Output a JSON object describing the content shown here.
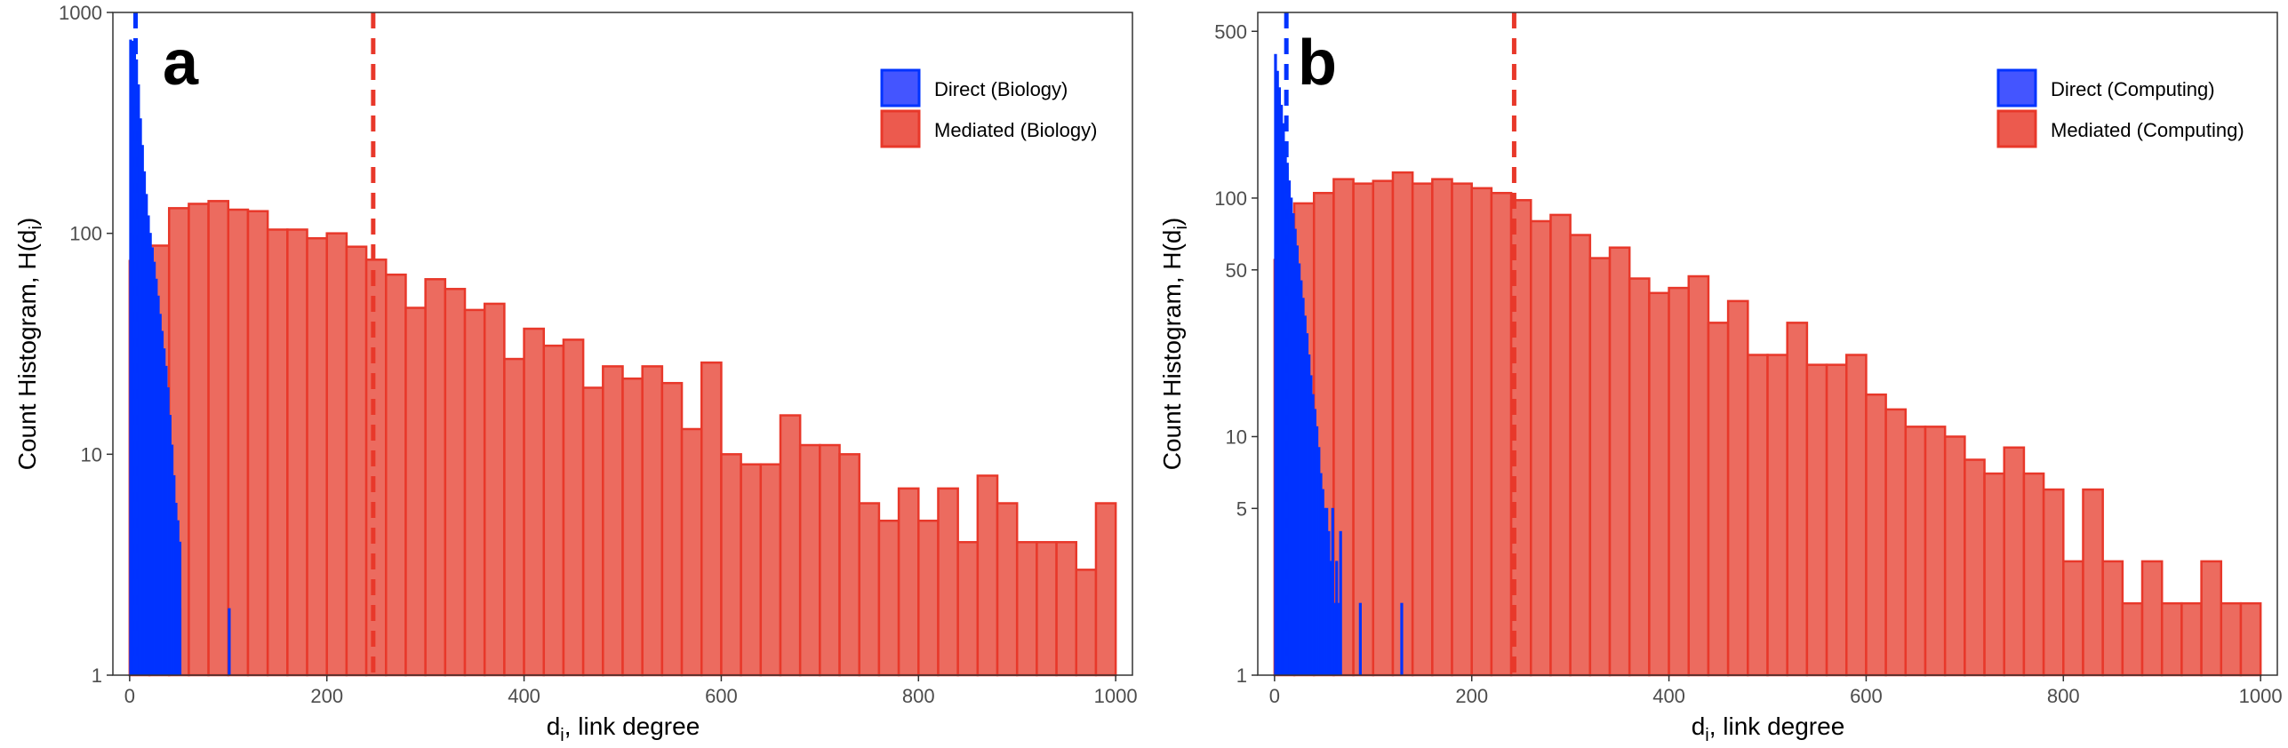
{
  "chart_data": [
    {
      "type": "histogram",
      "panel_label": "a",
      "xlabel": "d",
      "xlabel_sub": "i",
      "xlabel_rest": ", link degree",
      "ylabel": "Count Histogram, H(d",
      "ylabel_sub": "i",
      "ylabel_rest": ")",
      "x_scale": "linear",
      "y_scale": "log",
      "xlim": [
        -17,
        1017
      ],
      "ylim": [
        1,
        1000
      ],
      "x_ticks": [
        "0",
        "200",
        "400",
        "600",
        "800",
        "1000"
      ],
      "y_ticks": [
        "1",
        "10",
        "100",
        "1000"
      ],
      "grid": false,
      "legend_position": "top-right",
      "colors": {
        "direct": "#0033FF",
        "mediated": "#E8382A"
      },
      "series": [
        {
          "name": "Direct (Biology)",
          "bin_start": 0,
          "bin_width": 2,
          "values": [
            750,
            740,
            700,
            610,
            470,
            330,
            250,
            190,
            150,
            120,
            100,
            86,
            74,
            62,
            52,
            43,
            36,
            30,
            25,
            20,
            15,
            11,
            8,
            6,
            5,
            4
          ],
          "extra_bars": [
            {
              "x": 50,
              "value": 2
            },
            {
              "x": 100,
              "value": 2
            }
          ],
          "mean_line": 6
        },
        {
          "name": "Mediated (Biology)",
          "bin_start": 0,
          "bin_width": 20,
          "values": [
            75,
            88,
            130,
            136,
            140,
            128,
            126,
            104,
            104,
            95,
            100,
            87,
            76,
            65,
            46,
            62,
            56,
            45,
            48,
            27,
            37,
            31,
            33,
            20,
            25,
            22,
            25,
            21,
            13,
            26,
            10,
            9,
            9,
            15,
            11,
            11,
            10,
            6,
            5,
            7,
            5,
            7,
            4,
            8,
            6,
            4,
            4,
            4,
            3,
            6
          ],
          "mean_line": 247
        }
      ]
    },
    {
      "type": "histogram",
      "panel_label": "b",
      "xlabel": "d",
      "xlabel_sub": "i",
      "xlabel_rest": ", link degree",
      "ylabel": "Count Histogram, H(d",
      "ylabel_sub": "i",
      "ylabel_rest": ")",
      "x_scale": "linear",
      "y_scale": "log",
      "xlim": [
        -17,
        1017
      ],
      "ylim": [
        1,
        600
      ],
      "x_ticks": [
        "0",
        "200",
        "400",
        "600",
        "800",
        "1000"
      ],
      "y_ticks": [
        "1",
        "5",
        "10",
        "50",
        "100",
        "500"
      ],
      "grid": false,
      "legend_position": "top-right",
      "colors": {
        "direct": "#0033FF",
        "mediated": "#E8382A"
      },
      "series": [
        {
          "name": "Direct (Computing)",
          "bin_start": 0,
          "bin_width": 2,
          "values": [
            400,
            340,
            290,
            245,
            205,
            170,
            140,
            118,
            100,
            86,
            74,
            63,
            53,
            45,
            38,
            32,
            27,
            22,
            18,
            15,
            13,
            11,
            9,
            7,
            6,
            5,
            5,
            4,
            3,
            3,
            2,
            3,
            2
          ],
          "extra_bars": [
            {
              "x": 58,
              "value": 5
            },
            {
              "x": 66,
              "value": 4
            },
            {
              "x": 86,
              "value": 2
            },
            {
              "x": 128,
              "value": 2
            }
          ],
          "mean_line": 12
        },
        {
          "name": "Mediated (Computing)",
          "bin_start": 0,
          "bin_width": 20,
          "values": [
            55,
            95,
            105,
            120,
            115,
            118,
            128,
            115,
            120,
            115,
            110,
            105,
            98,
            80,
            85,
            70,
            56,
            62,
            46,
            40,
            42,
            47,
            30,
            37,
            22,
            22,
            30,
            20,
            20,
            22,
            15,
            13,
            11,
            11,
            10,
            8,
            7,
            9,
            7,
            6,
            3,
            6,
            3,
            2,
            3,
            2,
            2,
            3,
            2,
            2
          ],
          "mean_line": 243
        }
      ]
    }
  ]
}
